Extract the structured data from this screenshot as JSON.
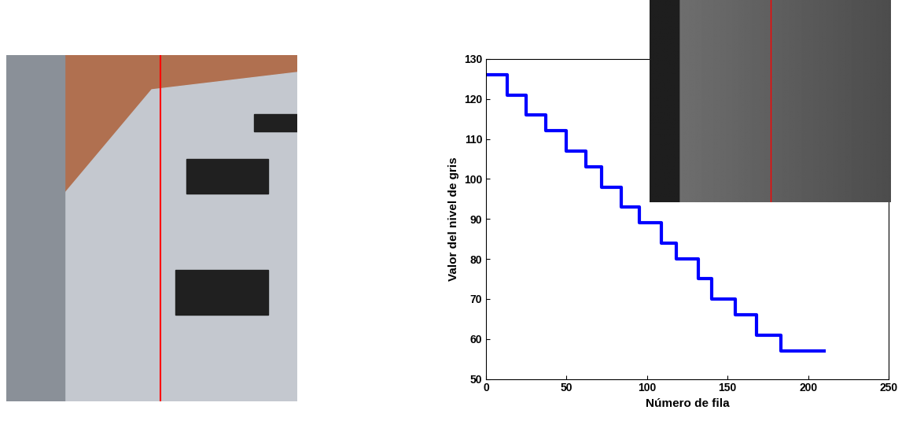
{
  "chart_data": {
    "type": "line",
    "x_label": "Número de fila",
    "y_label": "Valor del nivel de gris",
    "x": [
      0,
      13,
      25,
      37,
      50,
      62,
      72,
      84,
      95,
      109,
      118,
      132,
      140,
      155,
      168,
      183,
      210
    ],
    "series": [
      {
        "name": "Valor del nivel de gris",
        "color": "#0000ff",
        "line_style": "steps",
        "values": [
          126,
          121,
          116,
          112,
          107,
          103,
          98,
          93,
          89,
          84,
          80,
          75,
          70,
          66,
          61,
          57,
          57
        ]
      }
    ],
    "xlim": [
      0,
      250
    ],
    "xticks": [
      0,
      50,
      100,
      150,
      200,
      250
    ],
    "ylim": [
      50,
      130
    ],
    "yticks": [
      50,
      60,
      70,
      80,
      90,
      100,
      110,
      120,
      130
    ],
    "grid": false
  }
}
